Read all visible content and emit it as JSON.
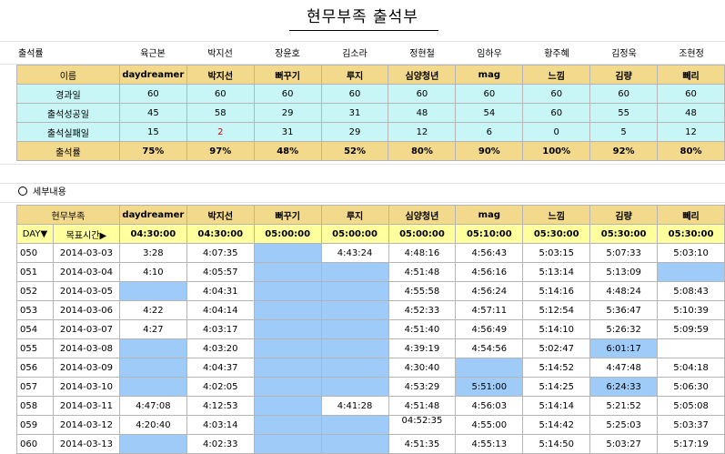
{
  "title": "현무부족 출석부",
  "summary": {
    "corner_label": "출석률",
    "real_names": [
      "육근본",
      "박지선",
      "장윤호",
      "김소라",
      "정현철",
      "임하우",
      "황주혜",
      "김정욱",
      "조현정"
    ],
    "header_label": "이름",
    "nicknames": [
      "daydreamer",
      "박지선",
      "뻐꾸기",
      "루지",
      "심양청년",
      "mag",
      "느낌",
      "김량",
      "뻬리"
    ],
    "rows": [
      {
        "label": "경과일",
        "values": [
          "60",
          "60",
          "60",
          "60",
          "60",
          "60",
          "60",
          "60",
          "60"
        ]
      },
      {
        "label": "출석성공일",
        "values": [
          "45",
          "58",
          "29",
          "31",
          "48",
          "54",
          "60",
          "55",
          "48"
        ]
      },
      {
        "label": "출석실패일",
        "values": [
          "15",
          "2",
          "31",
          "29",
          "12",
          "6",
          "0",
          "5",
          "12"
        ]
      }
    ],
    "rate": {
      "label": "출석률",
      "values": [
        "75%",
        "97%",
        "48%",
        "52%",
        "80%",
        "90%",
        "100%",
        "92%",
        "80%"
      ]
    }
  },
  "detail": {
    "section_label": "세부내용",
    "tribe_label": "현무부족",
    "day_label": "DAY▼",
    "goal_label": "목표시간▶",
    "goal_times": [
      "04:30:00",
      "04:30:00",
      "05:00:00",
      "05:00:00",
      "05:00:00",
      "05:10:00",
      "05:30:00",
      "05:30:00",
      "05:30:00"
    ],
    "rows": [
      {
        "day": "050",
        "date": "2014-03-03",
        "values": [
          "3:28",
          "4:07:35",
          "",
          "4:43:24",
          "4:48:16",
          "4:56:43",
          "5:03:15",
          "5:07:33",
          "5:03:10"
        ],
        "blue": [
          2
        ]
      },
      {
        "day": "051",
        "date": "2014-03-04",
        "values": [
          "4:10",
          "4:05:57",
          "",
          "",
          "4:51:48",
          "4:56:16",
          "5:13:14",
          "5:13:09",
          ""
        ],
        "blue": [
          2,
          3,
          8
        ]
      },
      {
        "day": "052",
        "date": "2014-03-05",
        "values": [
          "",
          "4:04:31",
          "",
          "",
          "4:55:58",
          "4:56:24",
          "5:14:16",
          "4:48:24",
          "5:08:43"
        ],
        "blue": [
          0,
          2,
          3
        ]
      },
      {
        "day": "053",
        "date": "2014-03-06",
        "values": [
          "4:22",
          "4:04:14",
          "",
          "",
          "4:52:33",
          "4:57:11",
          "5:12:54",
          "5:36:47",
          "5:10:39"
        ],
        "blue": [
          2,
          3
        ]
      },
      {
        "day": "054",
        "date": "2014-03-07",
        "values": [
          "4:27",
          "4:03:17",
          "",
          "",
          "4:51:40",
          "4:56:49",
          "5:14:10",
          "5:26:32",
          "5:09:59"
        ],
        "blue": [
          2,
          3
        ]
      },
      {
        "day": "055",
        "date": "2014-03-08",
        "values": [
          "",
          "4:03:20",
          "",
          "",
          "4:39:19",
          "4:54:56",
          "5:02:47",
          "6:01:17",
          ""
        ],
        "blue": [
          0,
          2,
          3,
          7
        ]
      },
      {
        "day": "056",
        "date": "2014-03-09",
        "values": [
          "",
          "4:04:37",
          "",
          "",
          "4:30:40",
          "",
          "5:14:52",
          "4:47:48",
          "5:04:18"
        ],
        "blue": [
          0,
          2,
          3,
          5
        ]
      },
      {
        "day": "057",
        "date": "2014-03-10",
        "values": [
          "",
          "4:02:05",
          "",
          "",
          "4:53:29",
          "5:51:00",
          "5:14:25",
          "6:24:33",
          "5:06:30"
        ],
        "blue": [
          0,
          2,
          3,
          5,
          7
        ]
      },
      {
        "day": "058",
        "date": "2014-03-11",
        "values": [
          "4:47:08",
          "4:12:53",
          "",
          "4:41:28",
          "4:51:48",
          "4:56:03",
          "5:14:14",
          "5:21:52",
          "5:05:08"
        ],
        "blue": [
          2
        ]
      },
      {
        "day": "059",
        "date": "2014-03-12",
        "values": [
          "4:20:40",
          "4:03:14",
          "",
          "",
          "04:52:35",
          "4:55:00",
          "5:14:42",
          "5:25:03",
          "5:03:37"
        ],
        "blue": [
          2,
          3
        ]
      },
      {
        "day": "060",
        "date": "2014-03-13",
        "values": [
          "",
          "4:02:33",
          "",
          "",
          "4:51:35",
          "4:55:13",
          "5:14:50",
          "5:03:27",
          "5:17:19"
        ],
        "blue": [
          0,
          2,
          3
        ]
      }
    ],
    "red_cells": [],
    "small_cells": [
      [
        9,
        4
      ]
    ]
  },
  "colors": {
    "header": "#f2d98b",
    "cyan": "#c8f5f5",
    "goal": "#ffff9e",
    "blue": "#9ecbf7",
    "red": "#e00000"
  }
}
